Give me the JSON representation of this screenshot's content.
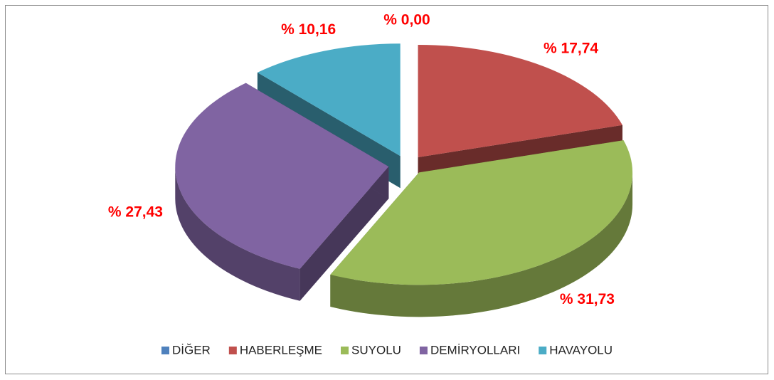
{
  "chart_data": {
    "type": "pie3d",
    "categories": [
      "DİĞER",
      "HABERLEŞME",
      "SUYOLU",
      "DEMİRYOLLARI",
      "HAVAYOLU"
    ],
    "values": [
      0.0,
      17.74,
      31.73,
      27.43,
      10.16
    ],
    "value_labels": [
      "% 0,00",
      "% 17,74",
      "% 31,73",
      "% 27,43",
      "% 10,16"
    ],
    "colors": [
      "#4f81bd",
      "#c0504d",
      "#9bbb59",
      "#8064a2",
      "#4bacc6"
    ],
    "legend": "bottom"
  }
}
